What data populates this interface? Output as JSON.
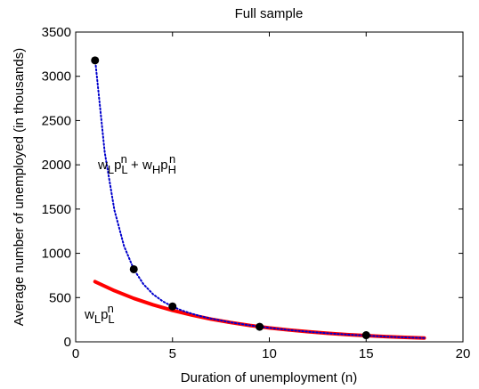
{
  "chart_data": {
    "type": "line",
    "title": "Full sample",
    "x_label": "Duration of unemployment (n)",
    "y_label": "Average number of unemployed (in thousands)",
    "xlim": [
      0,
      20
    ],
    "xticks": [
      0,
      5,
      10,
      15,
      20
    ],
    "ylim": [
      0,
      3500
    ],
    "yticks": [
      0,
      500,
      1000,
      1500,
      2000,
      2500,
      3000,
      3500
    ],
    "series": [
      {
        "style": "solid",
        "color": "#ff0000",
        "x": [
          1,
          2,
          3,
          4,
          5,
          6,
          7,
          8,
          9,
          10,
          11,
          12,
          13,
          14,
          15,
          16,
          17,
          18
        ],
        "values": [
          680,
          578,
          491,
          418,
          355,
          302,
          256,
          218,
          185,
          157,
          134,
          114,
          97,
          82,
          70,
          59,
          50,
          43
        ]
      },
      {
        "style": "dotted",
        "color": "#0000cc",
        "x": [
          1,
          1.5,
          2,
          2.5,
          3,
          3.5,
          4,
          4.5,
          5,
          5.5,
          6,
          6.5,
          7,
          8,
          9,
          10,
          11,
          12,
          13,
          14,
          15,
          16,
          17,
          18
        ],
        "values": [
          3200,
          2141,
          1488,
          1080,
          820,
          651,
          537,
          457,
          398,
          353,
          318,
          287,
          262,
          220,
          186,
          158,
          134,
          114,
          97,
          82,
          70,
          59,
          50,
          43
        ]
      },
      {
        "style": "markers",
        "color": "#000000",
        "x": [
          1,
          3,
          5,
          9.5,
          15
        ],
        "values": [
          3180,
          820,
          400,
          170,
          75
        ]
      }
    ],
    "annotations": [
      {
        "segments": [
          {
            "text": "w"
          },
          {
            "text": "L",
            "script": "sub"
          },
          {
            "text": "p"
          },
          {
            "text": "L",
            "script": "sub"
          },
          {
            "text": "n",
            "script": "sup"
          },
          {
            "text": " + w"
          },
          {
            "text": "H",
            "script": "sub"
          },
          {
            "text": "p"
          },
          {
            "text": "H",
            "script": "sub"
          },
          {
            "text": "n",
            "script": "sup"
          }
        ]
      },
      {
        "segments": [
          {
            "text": "w"
          },
          {
            "text": "L",
            "script": "sub"
          },
          {
            "text": "p"
          },
          {
            "text": "L",
            "script": "sub"
          },
          {
            "text": "n",
            "script": "sup"
          }
        ]
      }
    ]
  }
}
